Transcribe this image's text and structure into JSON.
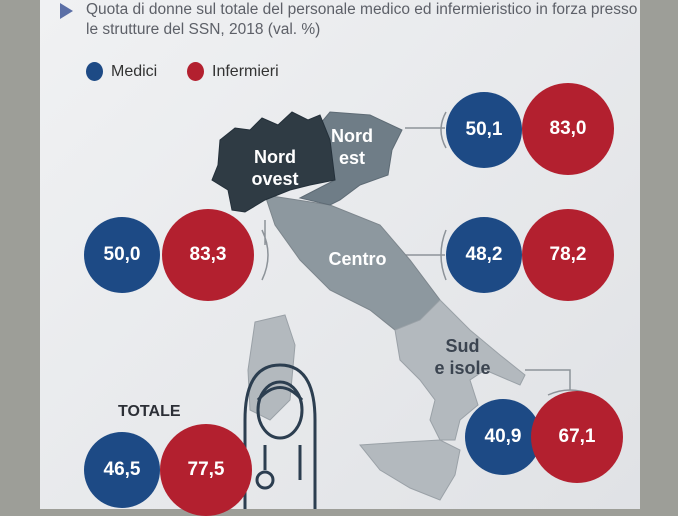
{
  "subtitle": "Quota di donne sul totale del personale medico ed infermieristico in forza presso le strutture del SSN, 2018 (val. %)",
  "legend": {
    "medici": "Medici",
    "infermieri": "Infermieri",
    "medici_color": "#1d4a85",
    "infermieri_color": "#b3202f"
  },
  "regions": {
    "nord_est": {
      "label1": "Nord",
      "label2": "est",
      "medici": "50,1",
      "infermieri": "83,0"
    },
    "nord_ovest": {
      "label1": "Nord",
      "label2": "ovest",
      "medici": "50,0",
      "infermieri": "83,3"
    },
    "centro": {
      "label": "Centro",
      "medici": "48,2",
      "infermieri": "78,2"
    },
    "sud": {
      "label1": "Sud",
      "label2": "e isole",
      "medici": "40,9",
      "infermieri": "67,1"
    }
  },
  "totale": {
    "label": "TOTALE",
    "medici": "46,5",
    "infermieri": "77,5"
  }
}
